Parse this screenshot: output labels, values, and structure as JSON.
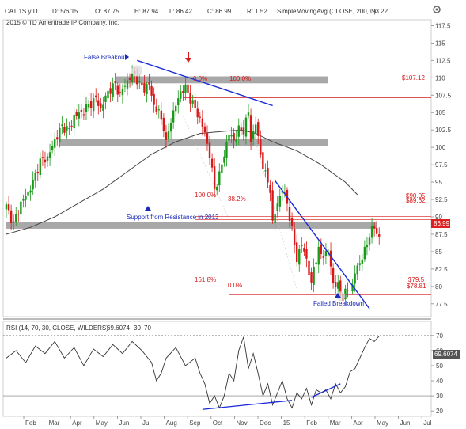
{
  "header": {
    "symbol": "CAT 1S y D",
    "date": "D: 5/6/15",
    "open": "O: 87.75",
    "high": "H: 87.94",
    "low": "L: 86.42",
    "close": "C: 86.99",
    "range": "R: 1.52",
    "sma_label": "SimpleMovingAvg (CLOSE, 200, 0)",
    "sma_value": "93.22",
    "copyright": "2015 © TD Ameritrade IP Company, Inc."
  },
  "rsi_header": {
    "label": "RSI (14, 70, 30, CLOSE, WILDERS)",
    "value": "69.6074",
    "level_low": "30",
    "level_high": "70"
  },
  "colors": {
    "up_candle": "#1a9a1a",
    "down_candle": "#d81818",
    "trendline": "#1a2bd8",
    "sma": "#444444",
    "zone": "#999999",
    "fib": "#d81818",
    "price_badge": "#e02020"
  },
  "chart_data": [
    {
      "type": "candlestick",
      "title": "",
      "xlabel": "",
      "ylabel": "",
      "x_ticks": [
        "Feb",
        "Mar",
        "Apr",
        "May",
        "Jun",
        "Jul",
        "Aug",
        "Sep",
        "Oct",
        "Nov",
        "Dec",
        "15",
        "Feb",
        "Mar",
        "Apr",
        "May",
        "Jun",
        "Jul"
      ],
      "y_ticks": [
        "117.5",
        "115",
        "112.5",
        "110",
        "107.5",
        "105",
        "102.5",
        "100",
        "97.5",
        "95",
        "92.5",
        "90",
        "87.5",
        "85",
        "82.5",
        "80",
        "77.5"
      ],
      "ylim": [
        76,
        118
      ],
      "grid": false,
      "series": [
        {
          "name": "CAT",
          "path": [
            [
              0,
              91.5
            ],
            [
              3,
              89
            ],
            [
              6,
              92
            ],
            [
              9,
              93.5
            ],
            [
              11,
              95
            ],
            [
              14,
              98
            ],
            [
              17,
              98.5
            ],
            [
              20,
              101
            ],
            [
              23,
              103
            ],
            [
              26,
              102.5
            ],
            [
              28,
              104.5
            ],
            [
              31,
              105
            ],
            [
              34,
              106
            ],
            [
              37,
              107
            ],
            [
              39,
              105.5
            ],
            [
              42,
              108
            ],
            [
              45,
              109
            ],
            [
              47,
              107.5
            ],
            [
              49,
              109
            ],
            [
              51,
              110
            ],
            [
              53,
              110.5
            ],
            [
              55,
              109
            ],
            [
              57,
              108.5
            ],
            [
              59,
              109
            ],
            [
              61,
              106
            ],
            [
              63,
              105
            ],
            [
              65,
              103
            ],
            [
              66,
              100.5
            ],
            [
              68,
              104
            ],
            [
              70,
              106
            ],
            [
              72,
              108
            ],
            [
              74,
              108.5
            ],
            [
              76,
              107
            ],
            [
              78,
              105.5
            ],
            [
              80,
              104
            ],
            [
              82,
              102
            ],
            [
              84,
              99
            ],
            [
              86,
              94
            ],
            [
              88,
              96
            ],
            [
              90,
              99
            ],
            [
              92,
              102
            ],
            [
              94,
              101
            ],
            [
              96,
              102.5
            ],
            [
              98,
              102.5
            ],
            [
              100,
              105
            ],
            [
              101,
              101
            ],
            [
              103,
              103.5
            ],
            [
              105,
              99
            ],
            [
              107,
              96
            ],
            [
              109,
              94
            ],
            [
              110,
              89
            ],
            [
              112,
              92
            ],
            [
              114,
              94
            ],
            [
              116,
              92
            ],
            [
              118,
              88
            ],
            [
              120,
              84
            ],
            [
              122,
              86
            ],
            [
              124,
              84
            ],
            [
              126,
              80
            ],
            [
              127,
              83
            ],
            [
              129,
              85
            ],
            [
              131,
              84.5
            ],
            [
              133,
              85
            ],
            [
              135,
              80.5
            ],
            [
              137,
              80
            ],
            [
              139,
              78.5
            ],
            [
              141,
              79.5
            ],
            [
              143,
              80
            ],
            [
              144,
              82
            ],
            [
              146,
              83.5
            ],
            [
              148,
              85
            ],
            [
              150,
              87.5
            ],
            [
              152,
              88.5
            ],
            [
              154,
              87
            ]
          ]
        },
        {
          "name": "SimpleMovingAvg (CLOSE, 200, 0)",
          "points": [
            [
              0,
              87.5
            ],
            [
              10,
              88.5
            ],
            [
              20,
              90
            ],
            [
              30,
              92
            ],
            [
              40,
              94
            ],
            [
              50,
              96.5
            ],
            [
              60,
              99
            ],
            [
              70,
              100.8
            ],
            [
              80,
              102
            ],
            [
              90,
              102.3
            ],
            [
              97,
              102.5
            ],
            [
              103,
              102
            ],
            [
              110,
              100.8
            ],
            [
              120,
              99.5
            ],
            [
              130,
              97.5
            ],
            [
              140,
              95
            ],
            [
              145,
              93.2
            ]
          ]
        }
      ],
      "zones": [
        {
          "from": 109.2,
          "to": 110.2,
          "x_start": 45,
          "x_end": 133
        },
        {
          "from": 100.2,
          "to": 101.2,
          "x_start": 22,
          "x_end": 133
        },
        {
          "from": 88.3,
          "to": 89.3,
          "x_start": 0,
          "x_end": 153
        }
      ],
      "price_levels": [
        {
          "value": 107.12,
          "label": "$107.12"
        },
        {
          "value": 90.05,
          "label": "$90.05"
        },
        {
          "value": 89.62,
          "label": "$89.62"
        },
        {
          "value": 79.5,
          "label": "$79.5"
        },
        {
          "value": 78.81,
          "label": "$78.81"
        }
      ],
      "fib_labels": [
        "0.0%",
        "100.0%",
        "100.0%",
        "38.2%",
        "161.8%",
        "0.0%"
      ],
      "annotations": [
        "False Breakout",
        "Support from Resistance in 2013",
        "Failed Breakdown"
      ],
      "last_price": "86.99"
    },
    {
      "type": "line",
      "title": "",
      "y_ticks": [
        "70",
        "60",
        "50",
        "40",
        "30",
        "20"
      ],
      "ylim": [
        18,
        72
      ],
      "levels": [
        30,
        70
      ],
      "series": [
        {
          "name": "RSI",
          "points": [
            [
              0,
              55
            ],
            [
              4,
              60
            ],
            [
              8,
              52
            ],
            [
              12,
              63
            ],
            [
              16,
              58
            ],
            [
              20,
              66
            ],
            [
              24,
              55
            ],
            [
              28,
              62
            ],
            [
              32,
              50
            ],
            [
              36,
              61
            ],
            [
              40,
              56
            ],
            [
              44,
              64
            ],
            [
              48,
              58
            ],
            [
              52,
              66
            ],
            [
              56,
              60
            ],
            [
              60,
              52
            ],
            [
              62,
              40
            ],
            [
              64,
              45
            ],
            [
              66,
              55
            ],
            [
              70,
              62
            ],
            [
              74,
              50
            ],
            [
              78,
              55
            ],
            [
              80,
              45
            ],
            [
              82,
              38
            ],
            [
              84,
              25
            ],
            [
              86,
              30
            ],
            [
              88,
              22
            ],
            [
              90,
              30
            ],
            [
              92,
              45
            ],
            [
              94,
              40
            ],
            [
              96,
              60
            ],
            [
              98,
              69
            ],
            [
              100,
              48
            ],
            [
              102,
              58
            ],
            [
              104,
              45
            ],
            [
              106,
              30
            ],
            [
              108,
              38
            ],
            [
              110,
              24
            ],
            [
              112,
              32
            ],
            [
              114,
              40
            ],
            [
              116,
              28
            ],
            [
              118,
              22
            ],
            [
              120,
              32
            ],
            [
              122,
              28
            ],
            [
              124,
              35
            ],
            [
              126,
              24
            ],
            [
              128,
              34
            ],
            [
              130,
              32
            ],
            [
              132,
              34
            ],
            [
              134,
              28
            ],
            [
              136,
              38
            ],
            [
              138,
              32
            ],
            [
              140,
              36
            ],
            [
              142,
              46
            ],
            [
              144,
              48
            ],
            [
              146,
              55
            ],
            [
              148,
              62
            ],
            [
              150,
              68
            ],
            [
              152,
              66
            ],
            [
              154,
              69.6
            ]
          ]
        }
      ],
      "trendlines": [
        [
          [
            81,
            21
          ],
          [
            118,
            27
          ]
        ],
        [
          [
            126,
            29
          ],
          [
            138,
            38
          ]
        ]
      ],
      "last_value": "69.6074"
    }
  ]
}
